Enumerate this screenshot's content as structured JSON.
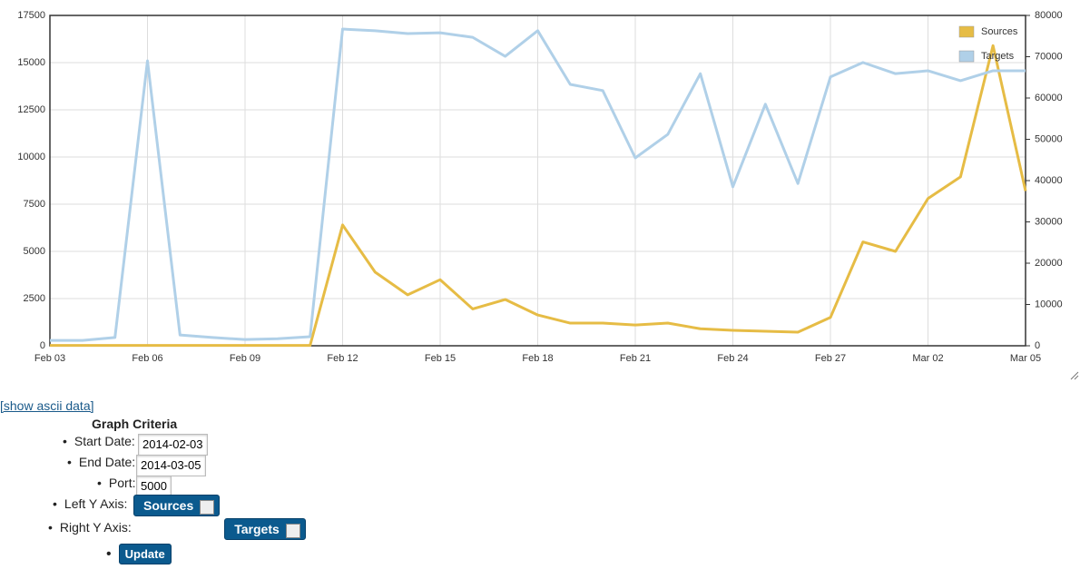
{
  "chart_data": {
    "type": "line",
    "categories": [
      "Feb 03",
      null,
      null,
      "Feb 06",
      null,
      null,
      "Feb 09",
      null,
      null,
      "Feb 12",
      null,
      null,
      "Feb 15",
      null,
      null,
      "Feb 18",
      null,
      null,
      "Feb 21",
      null,
      null,
      "Feb 24",
      null,
      null,
      "Feb 27",
      null,
      null,
      "Mar 02",
      null,
      null,
      "Mar 05"
    ],
    "series": [
      {
        "name": "Sources",
        "color": "#e6bc45",
        "axis": "y",
        "values": [
          20,
          20,
          20,
          20,
          20,
          20,
          20,
          20,
          20,
          6400,
          3900,
          2700,
          3500,
          1950,
          2450,
          1630,
          1200,
          1200,
          1100,
          1200,
          900,
          820,
          770,
          720,
          1500,
          5500,
          5000,
          7800,
          8950,
          15900,
          8200
        ]
      },
      {
        "name": "Targets",
        "color": "#b0d0e8",
        "axis": "y2",
        "values": [
          1300,
          1300,
          2000,
          69000,
          2600,
          2000,
          1500,
          1700,
          2200,
          76700,
          76300,
          75600,
          75800,
          74700,
          70100,
          76300,
          63300,
          61800,
          45500,
          51200,
          65900,
          38500,
          58500,
          39300,
          65100,
          68600,
          65900,
          66600,
          64200,
          66600,
          66600
        ]
      }
    ],
    "ylim": [
      0,
      17500
    ],
    "yticks": [
      0,
      2500,
      5000,
      7500,
      10000,
      12500,
      15000,
      17500
    ],
    "y2lim": [
      0,
      80000
    ],
    "y2ticks": [
      0,
      10000,
      20000,
      30000,
      40000,
      50000,
      60000,
      70000,
      80000
    ],
    "grid": true,
    "legend": "top-right"
  },
  "form": {
    "link": "[show ascii data]",
    "title": "Graph Criteria",
    "fields": [
      {
        "label": "Start Date:",
        "value": "2014-02-03"
      },
      {
        "label": "End Date:",
        "value": "2014-03-05"
      },
      {
        "label": "Port:",
        "value": "5000"
      },
      {
        "label": "Left Y Axis:",
        "value": "Sources"
      },
      {
        "label": "Right Y Axis:",
        "value": "Targets"
      }
    ],
    "button": "Update"
  }
}
